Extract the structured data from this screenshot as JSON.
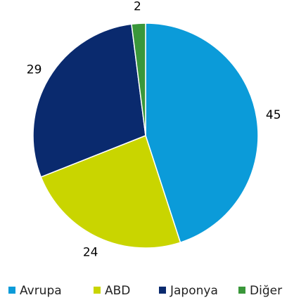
{
  "chart_data": {
    "type": "pie",
    "categories": [
      "Avrupa",
      "ABD",
      "Japonya",
      "Diğer"
    ],
    "values": [
      45,
      24,
      29,
      2
    ],
    "colors": [
      "#0b9bd9",
      "#c9d500",
      "#0a2a6e",
      "#3a973a"
    ],
    "legend": "bottom"
  }
}
